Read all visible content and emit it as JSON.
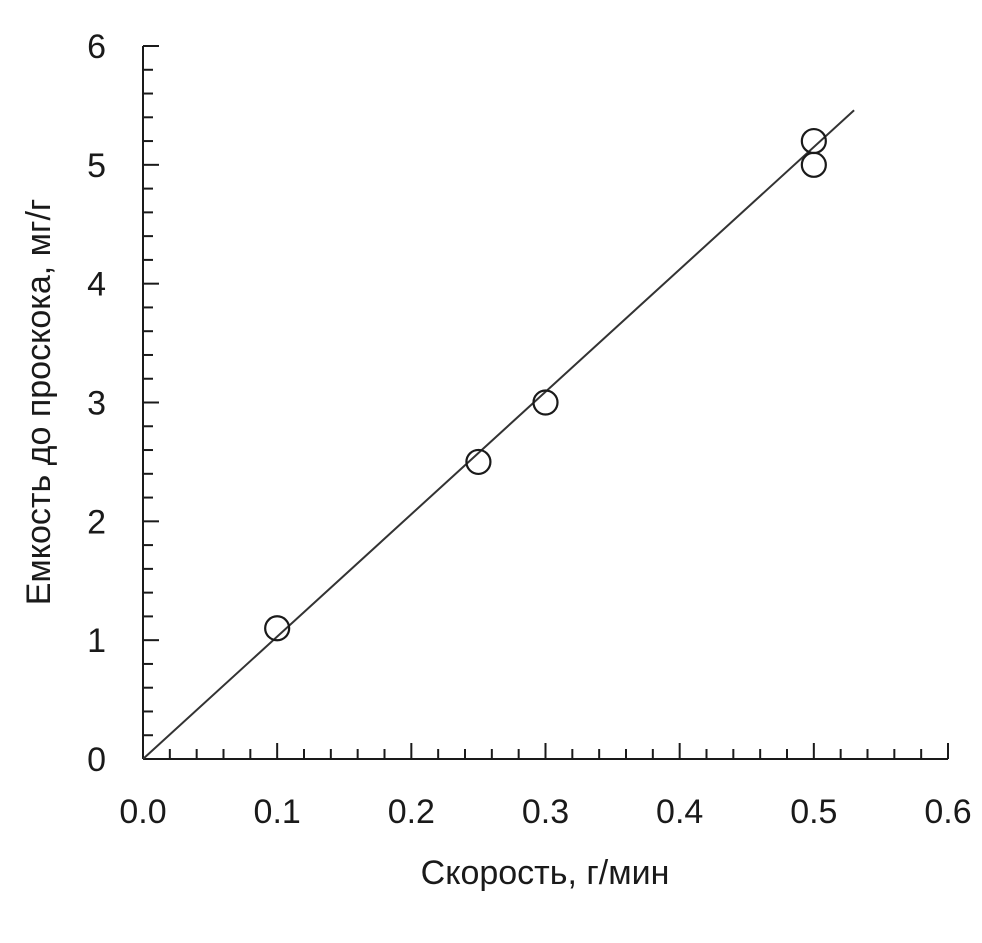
{
  "chart_data": {
    "type": "scatter",
    "title": "",
    "xlabel": "Скорость, г/мин",
    "ylabel": "Емкость до проскока,  мг/г",
    "xlim": [
      0,
      0.6
    ],
    "ylim": [
      0,
      6
    ],
    "x_ticks": [
      "0.0",
      "0.1",
      "0.2",
      "0.3",
      "0.4",
      "0.5",
      "0.6"
    ],
    "y_ticks": [
      "0",
      "1",
      "2",
      "3",
      "4",
      "5",
      "6"
    ],
    "x_minor_step": 0.02,
    "y_minor_step": 0.2,
    "grid": false,
    "legend": "none",
    "series": [
      {
        "points": [
          {
            "x": 0.1,
            "y": 1.1
          },
          {
            "x": 0.25,
            "y": 2.5
          },
          {
            "x": 0.3,
            "y": 3.0
          },
          {
            "x": 0.5,
            "y": 5.2
          },
          {
            "x": 0.5,
            "y": 5.0
          }
        ],
        "marker": "open-circle"
      }
    ],
    "trendline": {
      "slope": 10.3,
      "intercept": 0,
      "x_end": 0.53
    },
    "colors": {
      "axis": "#1a1a1a",
      "marker": "#1a1a1a",
      "line": "#333333"
    }
  }
}
